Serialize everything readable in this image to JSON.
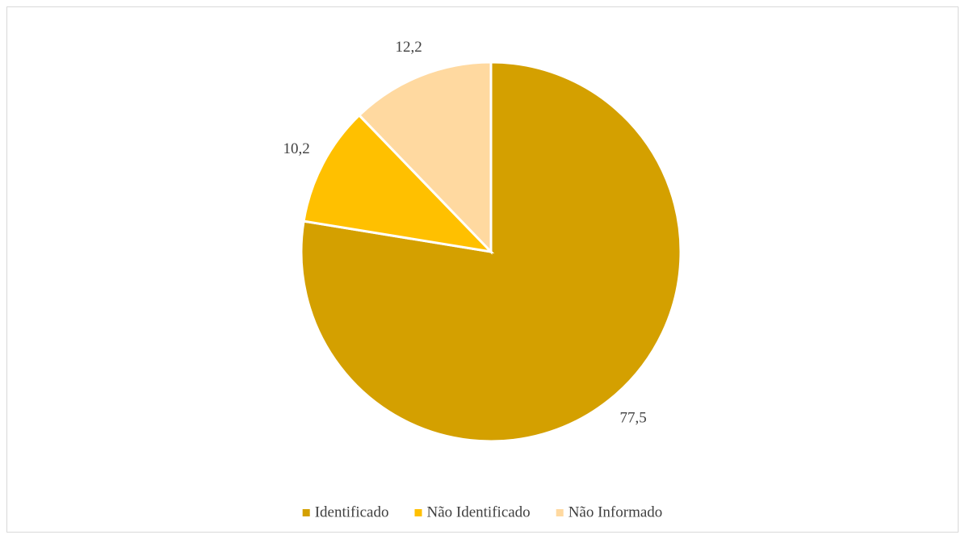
{
  "chart_data": {
    "type": "pie",
    "categories": [
      "Identificado",
      "Não Identificado",
      "Não Informado"
    ],
    "values": [
      77.5,
      10.2,
      12.2
    ],
    "value_labels": [
      "77,5",
      "10,2",
      "12,2"
    ],
    "colors": [
      "#d4a000",
      "#ffc000",
      "#ffd9a0"
    ],
    "legend": "bottom"
  }
}
